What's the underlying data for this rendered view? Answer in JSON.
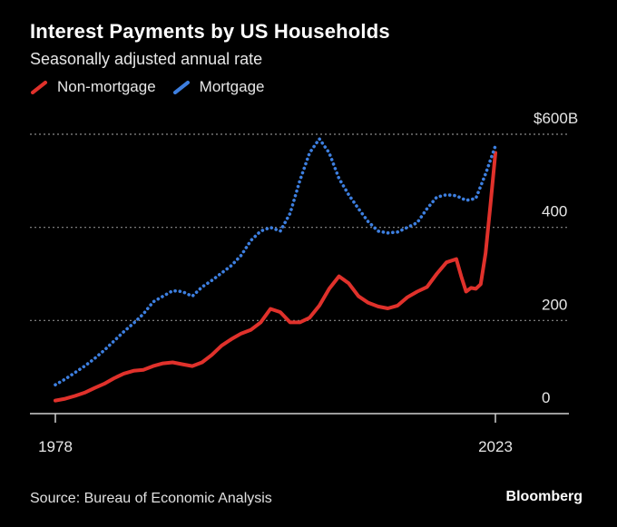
{
  "title": "Interest Payments by US Households",
  "subtitle": "Seasonally adjusted annual rate",
  "source": "Source: Bureau of Economic Analysis",
  "brand": "Bloomberg",
  "colors": {
    "non_mortgage": "#e0312b",
    "mortgage": "#3d7fe0",
    "grid": "#8a8a8a",
    "axis": "#cfcfcf"
  },
  "chart_data": {
    "type": "line",
    "x_tick_labels": [
      "1978",
      "2023"
    ],
    "y_tick_labels": [
      "0",
      "200",
      "400",
      "$600B"
    ],
    "y_ticks": [
      0,
      200,
      400,
      600
    ],
    "xlim": [
      1975.5,
      2030.5
    ],
    "ylim": [
      0,
      600
    ],
    "grid": true,
    "legend_position": "top-left",
    "series": [
      {
        "name": "Non-mortgage",
        "style": "solid",
        "points": [
          [
            1978,
            28
          ],
          [
            1979,
            32
          ],
          [
            1980,
            38
          ],
          [
            1981,
            45
          ],
          [
            1982,
            55
          ],
          [
            1983,
            64
          ],
          [
            1984,
            76
          ],
          [
            1985,
            86
          ],
          [
            1986,
            92
          ],
          [
            1987,
            94
          ],
          [
            1988,
            102
          ],
          [
            1989,
            108
          ],
          [
            1990,
            110
          ],
          [
            1991,
            106
          ],
          [
            1992,
            102
          ],
          [
            1993,
            110
          ],
          [
            1994,
            126
          ],
          [
            1995,
            146
          ],
          [
            1996,
            160
          ],
          [
            1997,
            172
          ],
          [
            1998,
            180
          ],
          [
            1999,
            196
          ],
          [
            2000,
            225
          ],
          [
            2001,
            218
          ],
          [
            2002,
            196
          ],
          [
            2003,
            196
          ],
          [
            2004,
            206
          ],
          [
            2005,
            232
          ],
          [
            2006,
            268
          ],
          [
            2007,
            295
          ],
          [
            2008,
            280
          ],
          [
            2009,
            252
          ],
          [
            2010,
            238
          ],
          [
            2011,
            230
          ],
          [
            2012,
            226
          ],
          [
            2013,
            232
          ],
          [
            2014,
            250
          ],
          [
            2015,
            262
          ],
          [
            2016,
            272
          ],
          [
            2017,
            300
          ],
          [
            2018,
            325
          ],
          [
            2019,
            332
          ],
          [
            2019.5,
            295
          ],
          [
            2020,
            262
          ],
          [
            2020.5,
            270
          ],
          [
            2021,
            268
          ],
          [
            2021.5,
            278
          ],
          [
            2022,
            345
          ],
          [
            2022.5,
            450
          ],
          [
            2023,
            560
          ]
        ]
      },
      {
        "name": "Mortgage",
        "style": "dotted",
        "points": [
          [
            1978,
            62
          ],
          [
            1979,
            74
          ],
          [
            1980,
            88
          ],
          [
            1981,
            102
          ],
          [
            1982,
            118
          ],
          [
            1983,
            136
          ],
          [
            1984,
            156
          ],
          [
            1985,
            176
          ],
          [
            1986,
            194
          ],
          [
            1987,
            214
          ],
          [
            1988,
            240
          ],
          [
            1989,
            252
          ],
          [
            1990,
            264
          ],
          [
            1991,
            262
          ],
          [
            1992,
            252
          ],
          [
            1993,
            272
          ],
          [
            1994,
            286
          ],
          [
            1995,
            302
          ],
          [
            1996,
            318
          ],
          [
            1997,
            340
          ],
          [
            1998,
            372
          ],
          [
            1999,
            392
          ],
          [
            2000,
            400
          ],
          [
            2001,
            392
          ],
          [
            2002,
            430
          ],
          [
            2003,
            500
          ],
          [
            2004,
            560
          ],
          [
            2005,
            590
          ],
          [
            2006,
            560
          ],
          [
            2007,
            505
          ],
          [
            2008,
            470
          ],
          [
            2009,
            440
          ],
          [
            2010,
            412
          ],
          [
            2011,
            392
          ],
          [
            2012,
            388
          ],
          [
            2013,
            390
          ],
          [
            2014,
            400
          ],
          [
            2015,
            410
          ],
          [
            2016,
            440
          ],
          [
            2017,
            465
          ],
          [
            2018,
            470
          ],
          [
            2019,
            468
          ],
          [
            2020,
            458
          ],
          [
            2021,
            462
          ],
          [
            2022,
            515
          ],
          [
            2023,
            575
          ]
        ]
      }
    ]
  }
}
